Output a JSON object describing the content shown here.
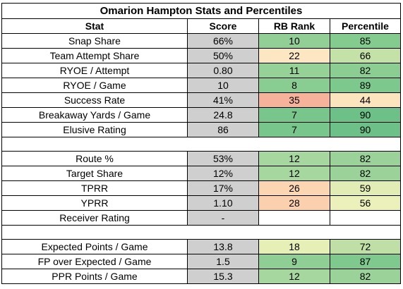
{
  "title": "Omarion Hampton Stats and Percentiles",
  "headers": [
    "Stat",
    "Score",
    "RB Rank",
    "Percentile"
  ],
  "sections": [
    [
      {
        "stat": "Snap Share",
        "score": "66%",
        "rank": "10",
        "pct": "85",
        "rank_color": "#92cf97",
        "pct_color": "#84cb8f"
      },
      {
        "stat": "Team Attempt Share",
        "score": "50%",
        "rank": "22",
        "pct": "66",
        "rank_color": "#fde6c2",
        "pct_color": "#c4e1a8"
      },
      {
        "stat": "RYOE / Attempt",
        "score": "0.80",
        "rank": "11",
        "pct": "82",
        "rank_color": "#96d197",
        "pct_color": "#8ccd93"
      },
      {
        "stat": "RYOE / Game",
        "score": "10",
        "rank": "8",
        "pct": "89",
        "rank_color": "#8acd93",
        "pct_color": "#7cc88d"
      },
      {
        "stat": "Success Rate",
        "score": "41%",
        "rank": "35",
        "pct": "44",
        "rank_color": "#f7b29b",
        "pct_color": "#fbe4be"
      },
      {
        "stat": "Breakaway Yards / Game",
        "score": "24.8",
        "rank": "7",
        "pct": "90",
        "rank_color": "#78c68b",
        "pct_color": "#6dc087"
      },
      {
        "stat": "Elusive Rating",
        "score": "86",
        "rank": "7",
        "pct": "90",
        "rank_color": "#78c68b",
        "pct_color": "#6dc087"
      }
    ],
    [
      {
        "stat": "Route %",
        "score": "53%",
        "rank": "12",
        "pct": "82",
        "rank_color": "#a6d79e",
        "pct_color": "#9bd29a"
      },
      {
        "stat": "Target Share",
        "score": "12%",
        "rank": "12",
        "pct": "82",
        "rank_color": "#a6d79e",
        "pct_color": "#9bd29a"
      },
      {
        "stat": "TPRR",
        "score": "17%",
        "rank": "26",
        "pct": "59",
        "rank_color": "#fcd6b2",
        "pct_color": "#e2ecb5"
      },
      {
        "stat": "YPRR",
        "score": "1.10",
        "rank": "28",
        "pct": "56",
        "rank_color": "#fad0ae",
        "pct_color": "#ecf0ba"
      },
      {
        "stat": "Receiver Rating",
        "score": "-",
        "rank": "",
        "pct": "",
        "rank_color": "#ffffff",
        "pct_color": "#ffffff"
      }
    ],
    [
      {
        "stat": "Expected Points / Game",
        "score": "13.8",
        "rank": "18",
        "pct": "72",
        "rank_color": "#e6efb6",
        "pct_color": "#bfdfa6"
      },
      {
        "stat": "FP over Expected / Game",
        "score": "1.5",
        "rank": "9",
        "pct": "87",
        "rank_color": "#8fcf95",
        "pct_color": "#7fc98e"
      },
      {
        "stat": "PPR Points / Game",
        "score": "15.3",
        "rank": "12",
        "pct": "82",
        "rank_color": "#a6d79e",
        "pct_color": "#9bd29a"
      }
    ]
  ]
}
